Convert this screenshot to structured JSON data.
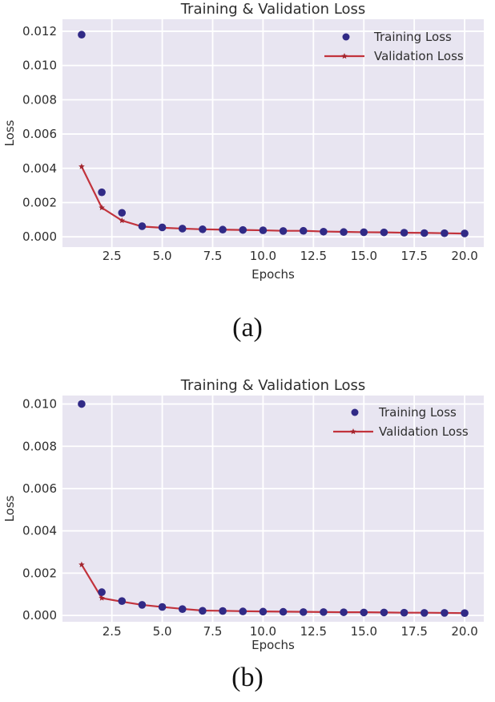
{
  "colors": {
    "page_bg": "#ffffff",
    "plot_bg": "#e8e5f1",
    "grid": "#ffffff",
    "training": "#312a86",
    "validation_line": "#c2333c",
    "validation_marker": "#a2262f",
    "title_text": "#3a3a3a",
    "tick_text": "#2e2e2e",
    "caption_text": "#141414"
  },
  "chart_data": [
    {
      "type": "line+scatter",
      "title": "Training & Validation Loss",
      "xlabel": "Epochs",
      "ylabel": "Loss",
      "caption": "(a)",
      "grid": true,
      "legend_position": "upper right",
      "x": [
        1,
        2,
        3,
        4,
        5,
        6,
        7,
        8,
        9,
        10,
        11,
        12,
        13,
        14,
        15,
        16,
        17,
        18,
        19,
        20
      ],
      "xlim": [
        0.05,
        20.95
      ],
      "ylim": [
        -0.0006,
        0.0127
      ],
      "xticks": [
        2.5,
        5.0,
        7.5,
        10.0,
        12.5,
        15.0,
        17.5,
        20.0
      ],
      "xtick_labels": [
        "2.5",
        "5.0",
        "7.5",
        "10.0",
        "12.5",
        "15.0",
        "17.5",
        "20.0"
      ],
      "yticks": [
        0.0,
        0.002,
        0.004,
        0.006,
        0.008,
        0.01,
        0.012
      ],
      "ytick_labels": [
        "0.000",
        "0.002",
        "0.004",
        "0.006",
        "0.008",
        "0.010",
        "0.012"
      ],
      "series": [
        {
          "name": "Training Loss",
          "style": "scatter",
          "values": [
            0.0118,
            0.0026,
            0.0014,
            0.00062,
            0.00055,
            0.00048,
            0.00044,
            0.00042,
            0.0004,
            0.00038,
            0.00034,
            0.00035,
            0.0003,
            0.00028,
            0.00027,
            0.00026,
            0.00024,
            0.00022,
            0.00021,
            0.0002
          ]
        },
        {
          "name": "Validation Loss",
          "style": "line+star",
          "values": [
            0.0041,
            0.0017,
            0.00095,
            0.0006,
            0.00053,
            0.00048,
            0.00044,
            0.00042,
            0.0004,
            0.00038,
            0.00035,
            0.00035,
            0.00031,
            0.00029,
            0.00027,
            0.00026,
            0.00024,
            0.00023,
            0.00021,
            0.00019
          ]
        }
      ]
    },
    {
      "type": "line+scatter",
      "title": "Training & Validation Loss",
      "xlabel": "Epochs",
      "ylabel": "Loss",
      "caption": "(b)",
      "grid": true,
      "legend_position": "upper right",
      "x": [
        1,
        2,
        3,
        4,
        5,
        6,
        7,
        8,
        9,
        10,
        11,
        12,
        13,
        14,
        15,
        16,
        17,
        18,
        19,
        20
      ],
      "xlim": [
        0.05,
        20.95
      ],
      "ylim": [
        -0.0003,
        0.0104
      ],
      "xticks": [
        2.5,
        5.0,
        7.5,
        10.0,
        12.5,
        15.0,
        17.5,
        20.0
      ],
      "xtick_labels": [
        "2.5",
        "5.0",
        "7.5",
        "10.0",
        "12.5",
        "15.0",
        "17.5",
        "20.0"
      ],
      "yticks": [
        0.0,
        0.002,
        0.004,
        0.006,
        0.008,
        0.01
      ],
      "ytick_labels": [
        "0.000",
        "0.002",
        "0.004",
        "0.006",
        "0.008",
        "0.010"
      ],
      "series": [
        {
          "name": "Training Loss",
          "style": "scatter",
          "values": [
            0.01,
            0.0011,
            0.00068,
            0.0005,
            0.0004,
            0.0003,
            0.00022,
            0.00021,
            0.00019,
            0.00018,
            0.00017,
            0.00016,
            0.00016,
            0.00015,
            0.00014,
            0.00014,
            0.00013,
            0.00012,
            0.00012,
            0.00011
          ]
        },
        {
          "name": "Validation Loss",
          "style": "line+star",
          "values": [
            0.0024,
            0.00082,
            0.00065,
            0.0005,
            0.0004,
            0.00031,
            0.00023,
            0.00022,
            0.0002,
            0.00019,
            0.00018,
            0.00017,
            0.00016,
            0.00015,
            0.00015,
            0.00014,
            0.00013,
            0.00013,
            0.00012,
            0.00011
          ]
        }
      ]
    }
  ]
}
